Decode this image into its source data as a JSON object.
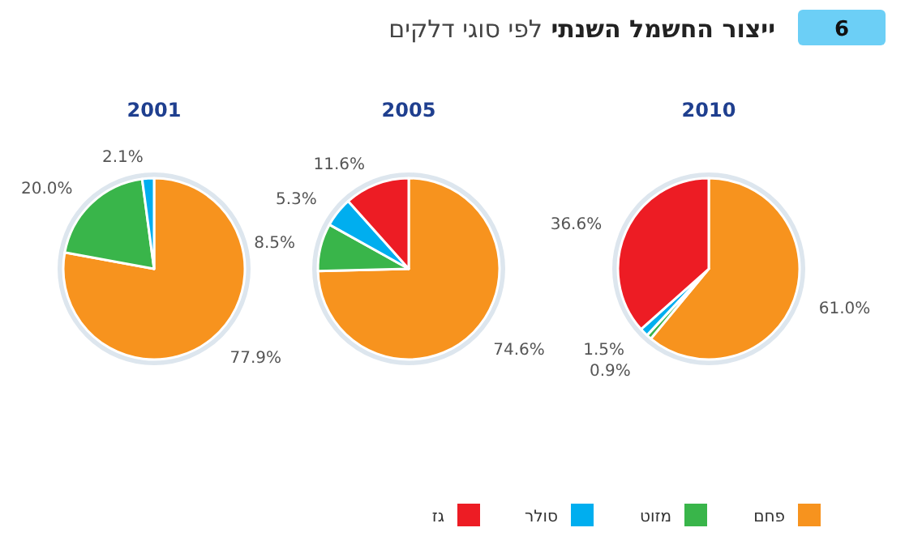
{
  "chart_data": [
    {
      "type": "pie",
      "title": "2001",
      "annotations": [
        "6",
        "ייצור החשמל השנתי לפי סוגי דלקים"
      ],
      "categories": [
        null,
        null,
        null
      ],
      "colors": [
        "#f7931e",
        "#39b54a",
        "#00aeef"
      ],
      "values": [
        77.9,
        20.0,
        2.1
      ],
      "value_labels": [
        "77.9%",
        "20.0%",
        "2.1%"
      ]
    },
    {
      "type": "pie",
      "title": "2005",
      "categories": [
        null,
        null,
        null,
        null
      ],
      "colors": [
        "#f7931e",
        "#39b54a",
        "#00aeef",
        "#ed1c24"
      ],
      "values": [
        74.6,
        8.5,
        5.3,
        11.6
      ],
      "value_labels": [
        "74.6%",
        "8.5%",
        "5.3%",
        "11.6%"
      ]
    },
    {
      "type": "pie",
      "title": "2010",
      "categories": [
        "פחם",
        "מזוט",
        "סולר",
        "גז"
      ],
      "colors": [
        "#f7931e",
        "#39b54a",
        "#00aeef",
        "#ed1c24"
      ],
      "values": [
        61.0,
        0.9,
        1.5,
        36.6
      ],
      "value_labels": [
        "61.0%",
        "0.9%",
        "1.5%",
        "36.6%"
      ],
      "legend": "bottom"
    }
  ]
}
